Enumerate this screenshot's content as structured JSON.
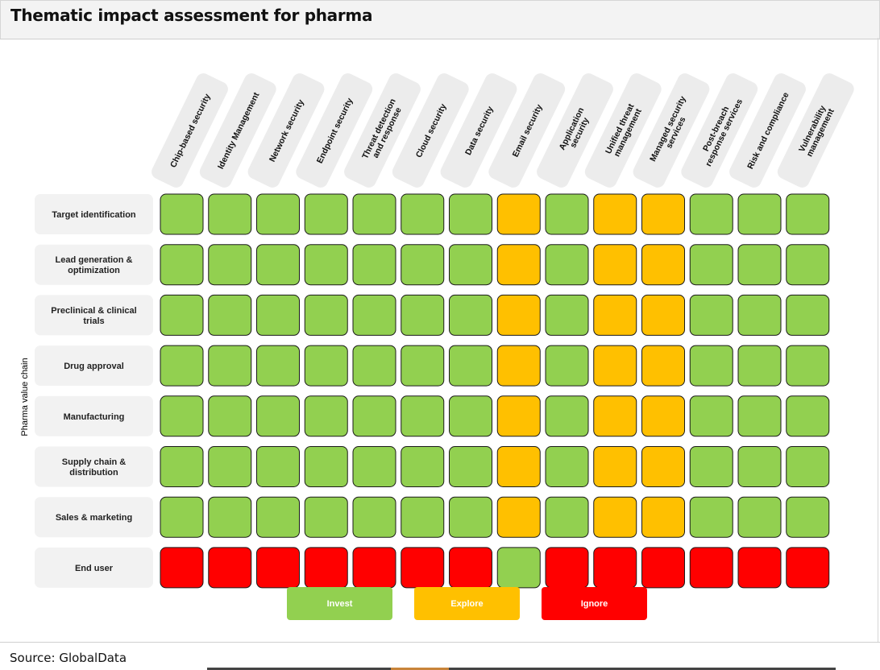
{
  "title": "Thematic impact assessment for pharma",
  "source": "Source: GlobalData",
  "colors": {
    "invest": "#92d050",
    "explore": "#ffc000",
    "ignore": "#ff0000",
    "label_bg": "#f2f2f2"
  },
  "chart_data": {
    "type": "heatmap",
    "ylabel": "Pharma value chain",
    "columns": [
      "Chip-based security",
      "Identity Management",
      "Network security",
      "Endpoint security",
      "Threat detection and response",
      "Cloud security",
      "Data security",
      "Email security",
      "Application security",
      "Unified threat management",
      "Managed security services",
      "Post-breach response services",
      "Risk and compliance",
      "Vulnerability management"
    ],
    "rows": [
      "Target identification",
      "Lead generation & optimization",
      "Preclinical & clinical trials",
      "Drug approval",
      "Manufacturing",
      "Supply chain & distribution",
      "Sales & marketing",
      "End user"
    ],
    "values": [
      [
        "Invest",
        "Invest",
        "Invest",
        "Invest",
        "Invest",
        "Invest",
        "Invest",
        "Explore",
        "Invest",
        "Explore",
        "Explore",
        "Invest",
        "Invest",
        "Invest"
      ],
      [
        "Invest",
        "Invest",
        "Invest",
        "Invest",
        "Invest",
        "Invest",
        "Invest",
        "Explore",
        "Invest",
        "Explore",
        "Explore",
        "Invest",
        "Invest",
        "Invest"
      ],
      [
        "Invest",
        "Invest",
        "Invest",
        "Invest",
        "Invest",
        "Invest",
        "Invest",
        "Explore",
        "Invest",
        "Explore",
        "Explore",
        "Invest",
        "Invest",
        "Invest"
      ],
      [
        "Invest",
        "Invest",
        "Invest",
        "Invest",
        "Invest",
        "Invest",
        "Invest",
        "Explore",
        "Invest",
        "Explore",
        "Explore",
        "Invest",
        "Invest",
        "Invest"
      ],
      [
        "Invest",
        "Invest",
        "Invest",
        "Invest",
        "Invest",
        "Invest",
        "Invest",
        "Explore",
        "Invest",
        "Explore",
        "Explore",
        "Invest",
        "Invest",
        "Invest"
      ],
      [
        "Invest",
        "Invest",
        "Invest",
        "Invest",
        "Invest",
        "Invest",
        "Invest",
        "Explore",
        "Invest",
        "Explore",
        "Explore",
        "Invest",
        "Invest",
        "Invest"
      ],
      [
        "Invest",
        "Invest",
        "Invest",
        "Invest",
        "Invest",
        "Invest",
        "Invest",
        "Explore",
        "Invest",
        "Explore",
        "Explore",
        "Invest",
        "Invest",
        "Invest"
      ],
      [
        "Ignore",
        "Ignore",
        "Ignore",
        "Ignore",
        "Ignore",
        "Ignore",
        "Ignore",
        "Invest",
        "Ignore",
        "Ignore",
        "Ignore",
        "Ignore",
        "Ignore",
        "Ignore"
      ]
    ],
    "legend": [
      "Invest",
      "Explore",
      "Ignore"
    ],
    "legend_placement": "bottom-center"
  }
}
